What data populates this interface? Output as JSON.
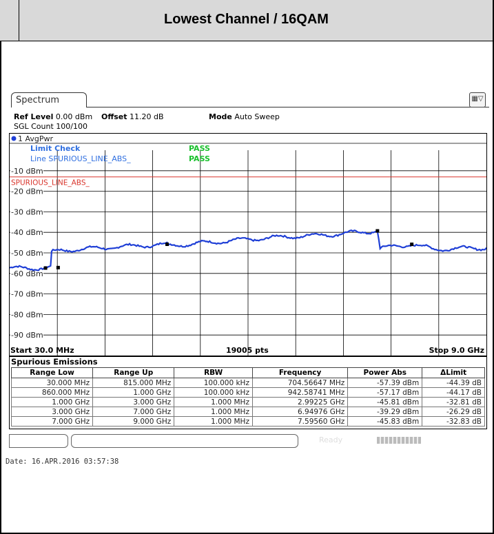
{
  "page": {
    "title": "Lowest Channel / 16QAM",
    "date_label": "Date: 16.APR.2016  03:57:38"
  },
  "analyzer": {
    "tab_label": "Spectrum",
    "ref_level_label": "Ref Level",
    "ref_level_value": "0.00 dBm",
    "offset_label": "Offset",
    "offset_value": "11.20 dB",
    "mode_label": "Mode",
    "mode_value": "Auto Sweep",
    "sgl_count": "SGL Count 100/100",
    "trace_label": "1 AvgPwr",
    "limit_check_label": "Limit Check",
    "limit_check_result": "PASS",
    "line_label": "Line  SPURIOUS_LINE_ABS_",
    "line_result": "PASS",
    "limit_line_name": "SPURIOUS_LINE_ABS_",
    "start_label": "Start 30.0 MHz",
    "pts_label": "19005 pts",
    "stop_label": "Stop 9.0 GHz",
    "ready_label": "Ready",
    "colors": {
      "trace": "#1f3fd6",
      "limit": "#d9342b",
      "pass": "#19c02c",
      "limit_check": "#2f6fe0"
    }
  },
  "chart_data": {
    "type": "line",
    "title": "",
    "xlabel": "",
    "ylabel": "",
    "y_ticks": [
      "-10 dBm",
      "-20 dBm",
      "-30 dBm",
      "-40 dBm",
      "-50 dBm",
      "-60 dBm",
      "-70 dBm",
      "-80 dBm",
      "-90 dBm"
    ],
    "ylim": [
      -100,
      0
    ],
    "xlim_ghz": [
      0.03,
      9.0
    ],
    "limit_line_dbm": -13,
    "series": [
      {
        "x": [
          0.03,
          0.5,
          0.8,
          0.82,
          1.0,
          2.0,
          2.99,
          3.0,
          4.0,
          5.0,
          6.0,
          6.95,
          7.0,
          7.6,
          8.0,
          9.0
        ],
        "y": [
          -57.5,
          -57.4,
          -57.2,
          -49.8,
          -48.8,
          -47.2,
          -45.8,
          -46.5,
          -44.5,
          -42.5,
          -41.2,
          -39.3,
          -47.8,
          -45.8,
          -48.2,
          -47.5
        ]
      }
    ]
  },
  "spurious": {
    "title": "Spurious Emissions",
    "headers": [
      "Range Low",
      "Range Up",
      "RBW",
      "Frequency",
      "Power Abs",
      "ΔLimit"
    ],
    "rows": [
      [
        "30.000 MHz",
        "815.000 MHz",
        "100.000 kHz",
        "704.56647 MHz",
        "-57.39 dBm",
        "-44.39 dB"
      ],
      [
        "860.000 MHz",
        "1.000 GHz",
        "100.000 kHz",
        "942.58741 MHz",
        "-57.17 dBm",
        "-44.17 dB"
      ],
      [
        "1.000 GHz",
        "3.000 GHz",
        "1.000 MHz",
        "2.99225 GHz",
        "-45.81 dBm",
        "-32.81 dB"
      ],
      [
        "3.000 GHz",
        "7.000 GHz",
        "1.000 MHz",
        "6.94976 GHz",
        "-39.29 dBm",
        "-26.29 dB"
      ],
      [
        "7.000 GHz",
        "9.000 GHz",
        "1.000 MHz",
        "7.59560 GHz",
        "-45.83 dBm",
        "-32.83 dB"
      ]
    ]
  }
}
